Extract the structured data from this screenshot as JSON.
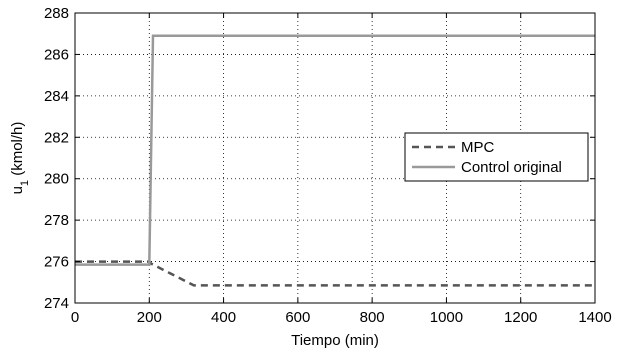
{
  "chart_data": {
    "type": "line",
    "title": "",
    "xlabel": "Tiempo (min)",
    "ylabel": "u",
    "ylabel_sub": "1",
    "ylabel_unit": " (kmol/h)",
    "xlim": [
      0,
      1400
    ],
    "ylim": [
      274,
      288
    ],
    "x_ticks": [
      0,
      200,
      400,
      600,
      800,
      1000,
      1200,
      1400
    ],
    "y_ticks": [
      274,
      276,
      278,
      280,
      282,
      284,
      286,
      288
    ],
    "grid": true,
    "legend_position": "right",
    "series": [
      {
        "name": "MPC",
        "style": "dashed",
        "color": "#555555",
        "points": [
          [
            0,
            276.0
          ],
          [
            200,
            276.0
          ],
          [
            205,
            275.9
          ],
          [
            320,
            274.85
          ],
          [
            1400,
            274.85
          ]
        ]
      },
      {
        "name": "Control original",
        "style": "solid",
        "color": "#999999",
        "points": [
          [
            0,
            275.85
          ],
          [
            200,
            275.85
          ],
          [
            210,
            286.9
          ],
          [
            1400,
            286.9
          ]
        ]
      }
    ]
  }
}
